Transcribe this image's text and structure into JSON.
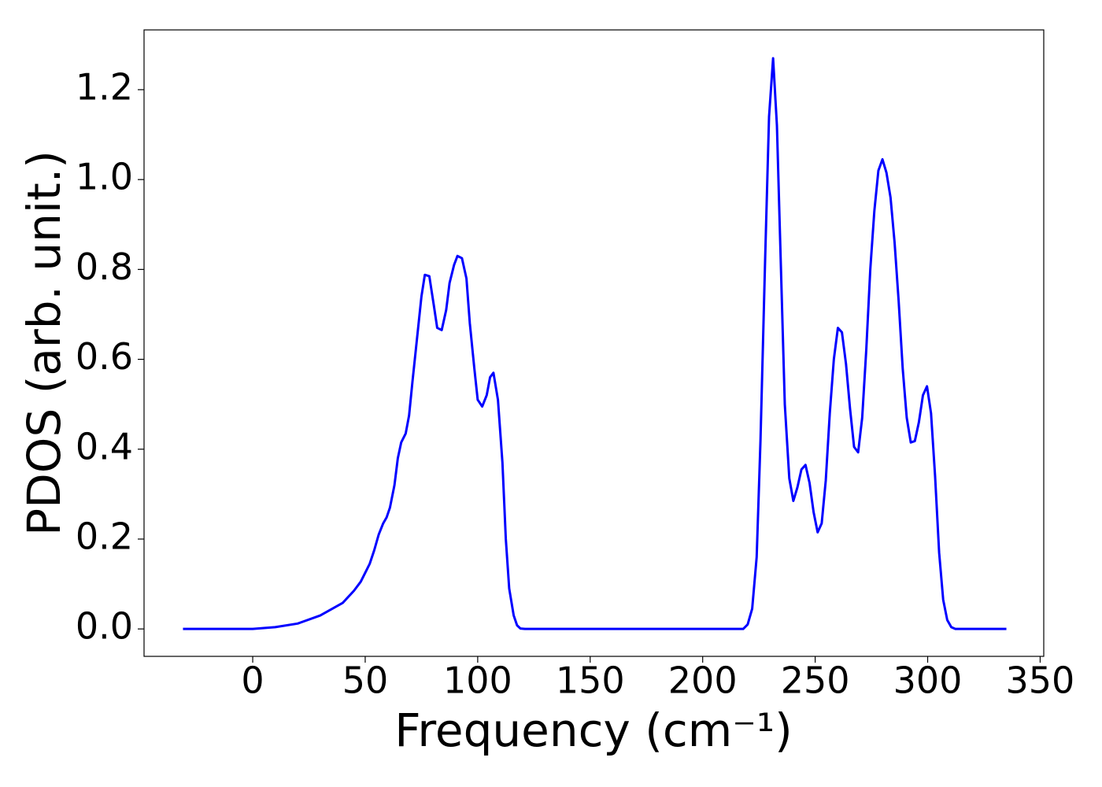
{
  "chart_data": {
    "type": "line",
    "xlabel": "Frequency (cm⁻¹)",
    "ylabel": "PDOS (arb. unit.)",
    "xlim": [
      -48.3,
      351.6
    ],
    "ylim": [
      -0.061,
      1.333
    ],
    "xticks": [
      0,
      50,
      100,
      150,
      200,
      250,
      300,
      350
    ],
    "yticks": [
      {
        "value": 0,
        "label": "0.0"
      },
      0.2,
      0.4,
      0.6,
      0.8,
      {
        "value": 1,
        "label": "1.0"
      },
      1.2
    ],
    "grid": false,
    "series": [
      {
        "color": "#0000ff",
        "x": [
          -31,
          0,
          10,
          20,
          30,
          40,
          45,
          48,
          50,
          52,
          54,
          56,
          58,
          59.5,
          61,
          63,
          64.5,
          66,
          68,
          69.5,
          71,
          73,
          75,
          76.5,
          78.5,
          80.5,
          82,
          84,
          86,
          87.5,
          89.5,
          91,
          93,
          95,
          96.5,
          98.5,
          100,
          102,
          104,
          105.5,
          107,
          109,
          111,
          112.5,
          114,
          116,
          117.5,
          119,
          121,
          218,
          220,
          222,
          224,
          225.7,
          227.8,
          229.5,
          231.3,
          233,
          234.8,
          236.5,
          238.5,
          240.3,
          242.1,
          243.9,
          245.7,
          247.5,
          249.3,
          251.1,
          252.9,
          254.7,
          256.5,
          258.3,
          260.1,
          261.9,
          263.7,
          265.5,
          267.3,
          269.1,
          270.9,
          272.7,
          274.5,
          276.3,
          278.1,
          279.9,
          281.7,
          283.5,
          285.3,
          287.1,
          288.9,
          290.7,
          292.5,
          294.3,
          296.1,
          297.9,
          299.7,
          301.5,
          303.3,
          305.1,
          306.9,
          308.7,
          310.5,
          312.3,
          335
        ],
        "values": [
          0,
          0,
          0.004,
          0.012,
          0.03,
          0.058,
          0.085,
          0.105,
          0.125,
          0.145,
          0.175,
          0.21,
          0.235,
          0.248,
          0.27,
          0.32,
          0.38,
          0.415,
          0.435,
          0.475,
          0.55,
          0.645,
          0.74,
          0.788,
          0.785,
          0.72,
          0.67,
          0.665,
          0.71,
          0.77,
          0.81,
          0.83,
          0.825,
          0.78,
          0.68,
          0.58,
          0.51,
          0.495,
          0.52,
          0.56,
          0.57,
          0.51,
          0.37,
          0.2,
          0.09,
          0.03,
          0.008,
          0.001,
          0,
          0,
          0.01,
          0.045,
          0.16,
          0.42,
          0.83,
          1.14,
          1.27,
          1.12,
          0.8,
          0.5,
          0.335,
          0.285,
          0.315,
          0.355,
          0.365,
          0.325,
          0.26,
          0.215,
          0.235,
          0.33,
          0.48,
          0.6,
          0.67,
          0.66,
          0.59,
          0.49,
          0.405,
          0.393,
          0.47,
          0.62,
          0.8,
          0.93,
          1.02,
          1.045,
          1.015,
          0.96,
          0.86,
          0.73,
          0.58,
          0.47,
          0.415,
          0.418,
          0.46,
          0.52,
          0.54,
          0.48,
          0.34,
          0.17,
          0.065,
          0.02,
          0.004,
          0,
          0
        ]
      }
    ]
  }
}
